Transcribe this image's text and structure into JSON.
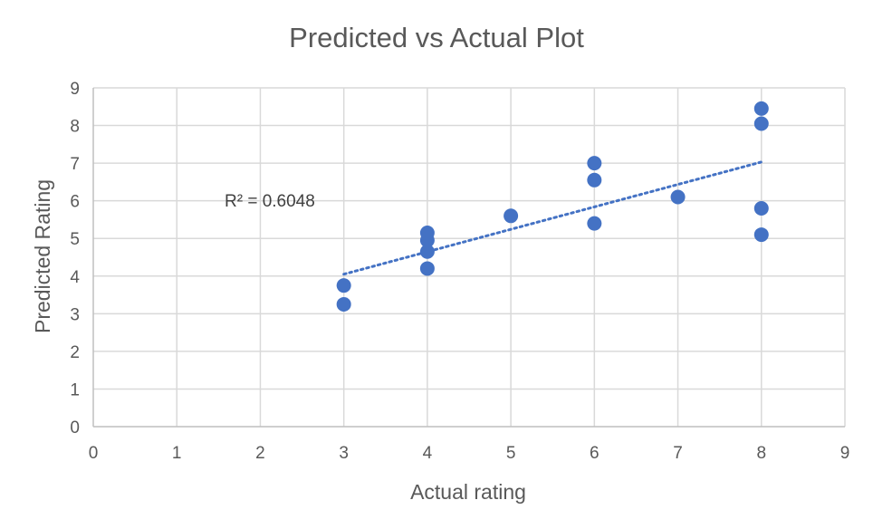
{
  "chart_data": {
    "type": "scatter",
    "title": "Predicted vs Actual Plot",
    "xlabel": "Actual rating",
    "ylabel": "Predicted Rating",
    "xlim": [
      0,
      9
    ],
    "ylim": [
      0,
      9
    ],
    "x_ticks": [
      "0",
      "1",
      "2",
      "3",
      "4",
      "5",
      "6",
      "7",
      "8",
      "9"
    ],
    "y_ticks": [
      "0",
      "1",
      "2",
      "3",
      "4",
      "5",
      "6",
      "7",
      "8",
      "9"
    ],
    "grid": true,
    "legend": "none",
    "color": "#4472C4",
    "points": [
      {
        "x": 3,
        "y": 3.75
      },
      {
        "x": 3,
        "y": 3.25
      },
      {
        "x": 4,
        "y": 5.15
      },
      {
        "x": 4,
        "y": 4.95
      },
      {
        "x": 4,
        "y": 4.65
      },
      {
        "x": 4,
        "y": 4.2
      },
      {
        "x": 5,
        "y": 5.6
      },
      {
        "x": 6,
        "y": 7.0
      },
      {
        "x": 6,
        "y": 6.55
      },
      {
        "x": 6,
        "y": 5.4
      },
      {
        "x": 7,
        "y": 6.1
      },
      {
        "x": 8,
        "y": 8.45
      },
      {
        "x": 8,
        "y": 8.05
      },
      {
        "x": 8,
        "y": 5.8
      },
      {
        "x": 8,
        "y": 5.1
      }
    ],
    "trendline": {
      "type": "linear",
      "x_start": 3,
      "y_start": 4.05,
      "x_end": 8,
      "y_end": 7.03,
      "style": "dotted"
    },
    "annotation": {
      "text": "R² = 0.6048"
    }
  }
}
